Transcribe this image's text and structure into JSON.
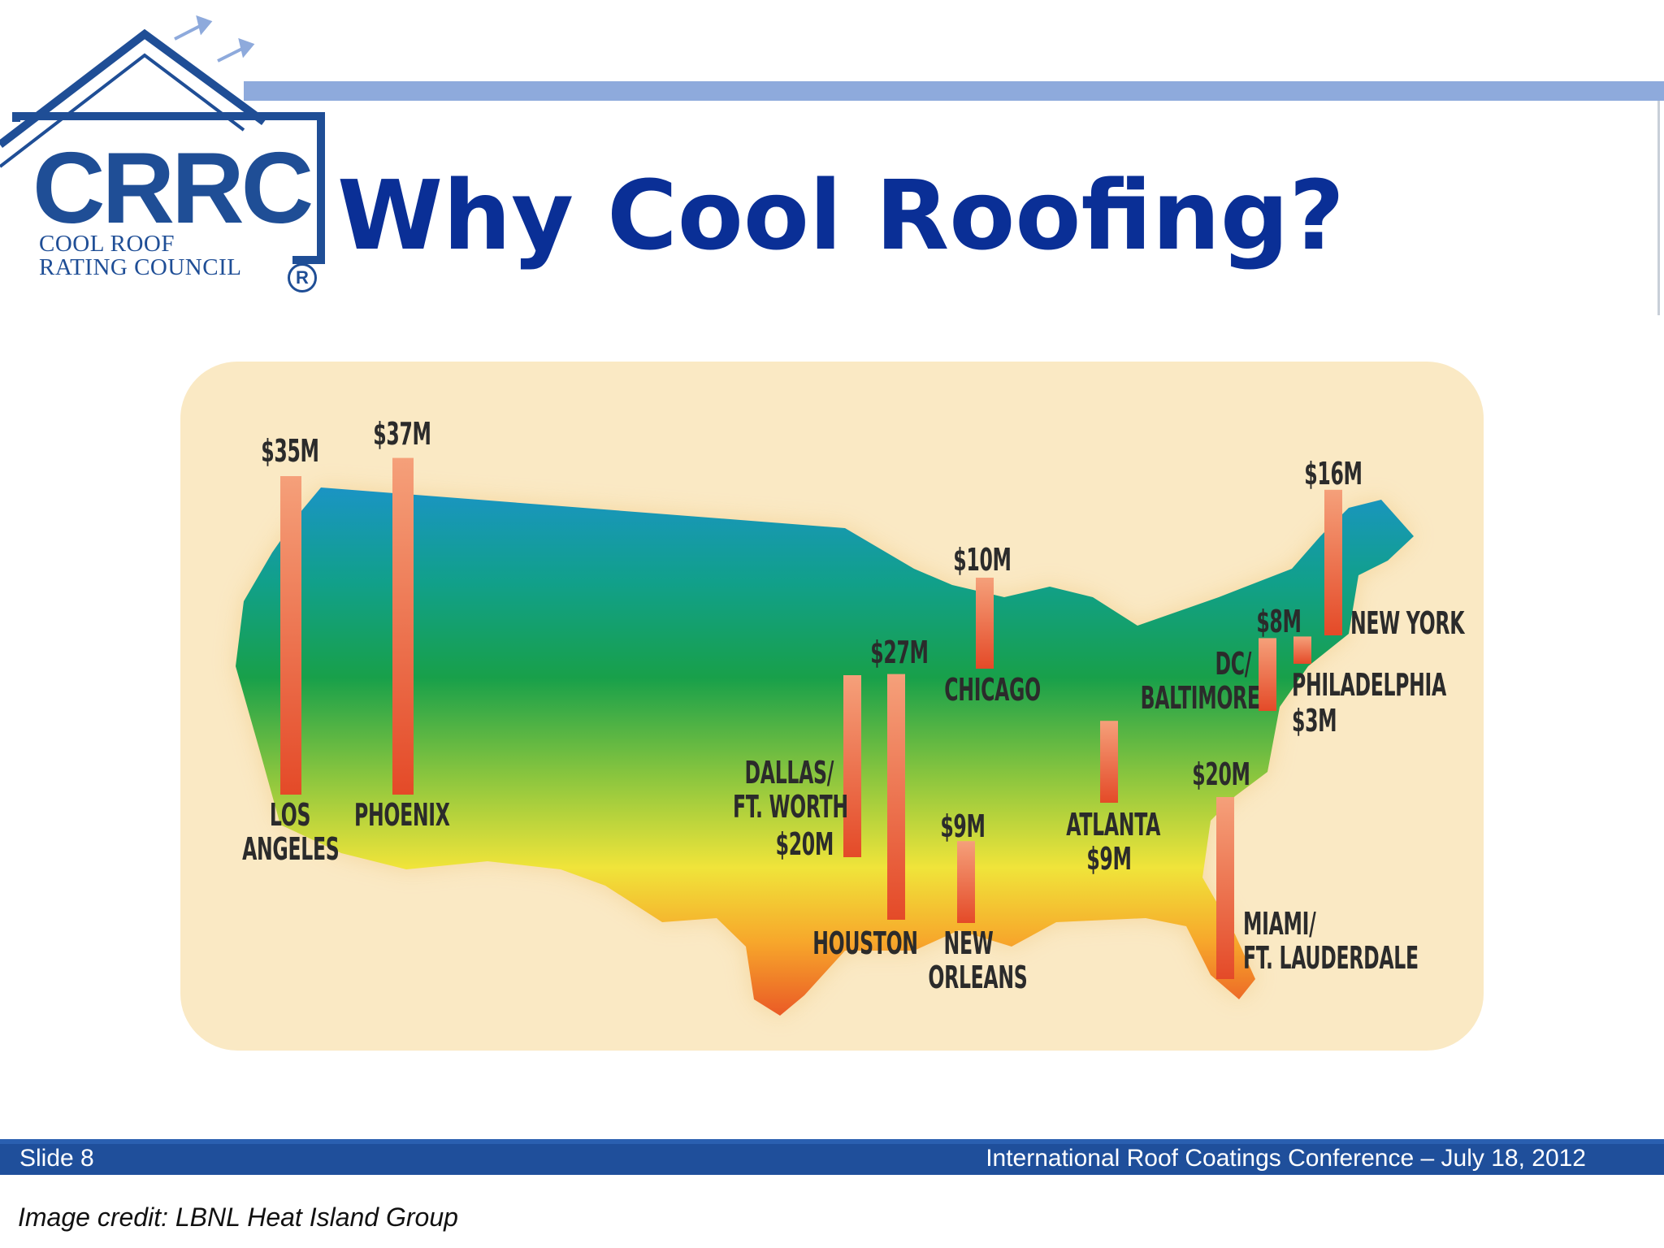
{
  "logo": {
    "mark": "CRRC",
    "line1": "COOL ROOF",
    "line2": "RATING COUNCIL",
    "registered": "R"
  },
  "title": "Why Cool Roofing?",
  "map": {
    "cities": [
      {
        "name": "LOS ANGELES",
        "label_lines": [
          "LOS",
          "ANGELES"
        ],
        "value": "$35M",
        "value_millions": 35
      },
      {
        "name": "PHOENIX",
        "label_lines": [
          "PHOENIX"
        ],
        "value": "$37M",
        "value_millions": 37
      },
      {
        "name": "DALLAS/FT. WORTH",
        "label_lines": [
          "DALLAS/",
          "FT. WORTH"
        ],
        "value": "$20M",
        "value_millions": 20
      },
      {
        "name": "HOUSTON",
        "label_lines": [
          "HOUSTON"
        ],
        "value": "$27M",
        "value_millions": 27
      },
      {
        "name": "NEW ORLEANS",
        "label_lines": [
          "NEW",
          "ORLEANS"
        ],
        "value": "$9M",
        "value_millions": 9
      },
      {
        "name": "CHICAGO",
        "label_lines": [
          "CHICAGO"
        ],
        "value": "$10M",
        "value_millions": 10
      },
      {
        "name": "ATLANTA",
        "label_lines": [
          "ATLANTA"
        ],
        "value": "$9M",
        "value_millions": 9
      },
      {
        "name": "MIAMI/FT. LAUDERDALE",
        "label_lines": [
          "MIAMI/",
          "FT. LAUDERDALE"
        ],
        "value": "$20M",
        "value_millions": 20
      },
      {
        "name": "DC/BALTIMORE",
        "label_lines": [
          "DC/",
          "BALTIMORE"
        ],
        "value": "$8M",
        "value_millions": 8
      },
      {
        "name": "PHILADELPHIA",
        "label_lines": [
          "PHILADELPHIA"
        ],
        "value": "$3M",
        "value_millions": 3
      },
      {
        "name": "NEW YORK",
        "label_lines": [
          "NEW YORK"
        ],
        "value": "$16M",
        "value_millions": 16
      }
    ]
  },
  "footer": {
    "slide": "Slide 8",
    "conference": "International Roof Coatings Conference – July 18, 2012"
  },
  "credit": "Image credit: LBNL Heat Island Group",
  "colors": {
    "title": "#0a2f96",
    "footer_bar": "#1f4f9b",
    "header_line": "#8eaadc",
    "map_background": "#fae9c4",
    "bar_top": "#f5a07a",
    "bar_bottom": "#e44a28"
  }
}
